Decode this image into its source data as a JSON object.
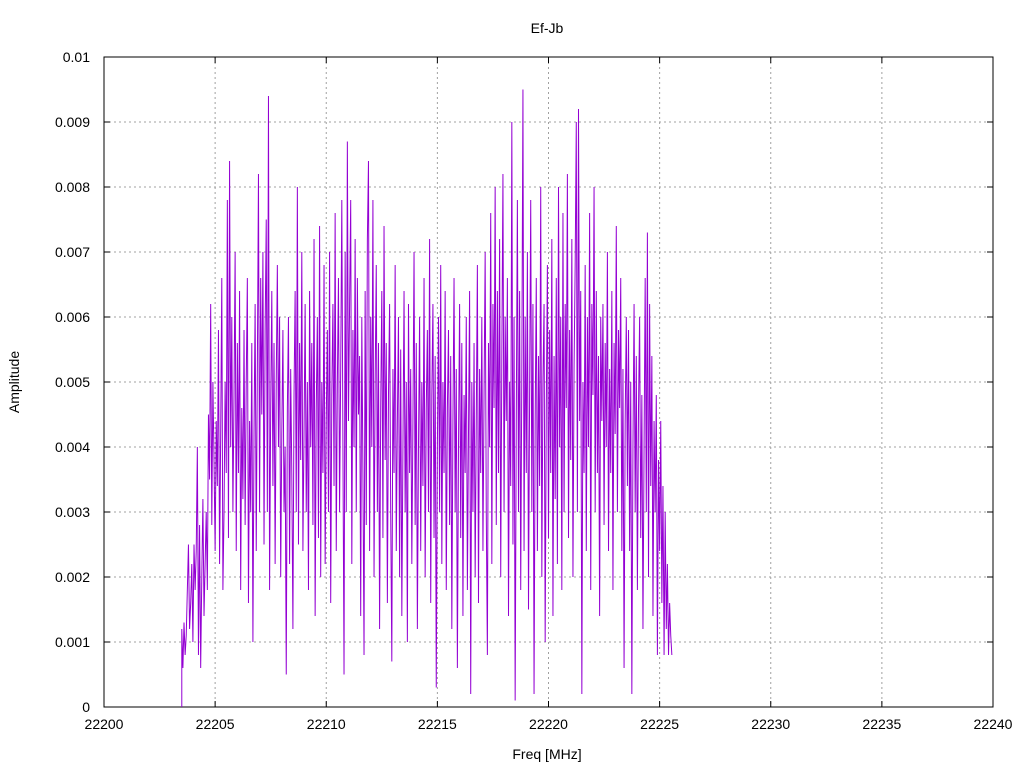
{
  "chart_data": {
    "type": "line",
    "title": "Ef-Jb",
    "xlabel": "Freq [MHz]",
    "ylabel": "Amplitude",
    "xlim": [
      22200,
      22240
    ],
    "ylim": [
      0,
      0.01
    ],
    "x_ticks": [
      "22200",
      "22205",
      "22210",
      "22215",
      "22220",
      "22225",
      "22230",
      "22235",
      "22240"
    ],
    "y_ticks": [
      "0",
      "0.001",
      "0.002",
      "0.003",
      "0.004",
      "0.005",
      "0.006",
      "0.007",
      "0.008",
      "0.009",
      "0.01"
    ],
    "grid": true,
    "legend": "none",
    "series": [
      {
        "color": "#9400d3",
        "x_start": 22203.5,
        "x_step": 0.05,
        "values": [
          0.0012,
          0.0006,
          0.0013,
          0.0008,
          0.0011,
          0.0018,
          0.0025,
          0.0012,
          0.0016,
          0.0022,
          0.001,
          0.0025,
          0.0018,
          0.0024,
          0.004,
          0.0008,
          0.0028,
          0.0006,
          0.002,
          0.0032,
          0.0014,
          0.0022,
          0.003,
          0.0018,
          0.0045,
          0.0035,
          0.0062,
          0.0028,
          0.005,
          0.0038,
          0.0024,
          0.0044,
          0.0034,
          0.0058,
          0.0022,
          0.0042,
          0.0066,
          0.0018,
          0.003,
          0.005,
          0.0036,
          0.0078,
          0.0026,
          0.0084,
          0.004,
          0.006,
          0.003,
          0.0048,
          0.007,
          0.0024,
          0.0056,
          0.0036,
          0.0064,
          0.0018,
          0.0046,
          0.0032,
          0.0058,
          0.0028,
          0.005,
          0.0066,
          0.0016,
          0.0044,
          0.003,
          0.0056,
          0.001,
          0.0042,
          0.0062,
          0.0024,
          0.0052,
          0.0082,
          0.003,
          0.0066,
          0.0045,
          0.007,
          0.0025,
          0.0058,
          0.0075,
          0.003,
          0.0094,
          0.0018,
          0.0046,
          0.0064,
          0.0034,
          0.0056,
          0.0022,
          0.005,
          0.0068,
          0.004,
          0.006,
          0.002,
          0.0042,
          0.0058,
          0.003,
          0.004,
          0.0005,
          0.0046,
          0.006,
          0.0022,
          0.0052,
          0.0036,
          0.0012,
          0.0048,
          0.0064,
          0.003,
          0.008,
          0.0025,
          0.0056,
          0.0038,
          0.007,
          0.0024,
          0.0042,
          0.0062,
          0.003,
          0.005,
          0.0018,
          0.0064,
          0.004,
          0.0056,
          0.0028,
          0.0072,
          0.0014,
          0.0046,
          0.006,
          0.0026,
          0.0074,
          0.002,
          0.005,
          0.0036,
          0.0068,
          0.0022,
          0.0044,
          0.0058,
          0.003,
          0.007,
          0.0016,
          0.0048,
          0.0062,
          0.0034,
          0.0076,
          0.0024,
          0.005,
          0.0066,
          0.003,
          0.0052,
          0.0078,
          0.004,
          0.0005,
          0.007,
          0.003,
          0.0087,
          0.0044,
          0.0062,
          0.0078,
          0.0022,
          0.0058,
          0.004,
          0.0072,
          0.003,
          0.0066,
          0.0045,
          0.0054,
          0.0014,
          0.006,
          0.0036,
          0.0008,
          0.0064,
          0.0028,
          0.0072,
          0.0084,
          0.0024,
          0.006,
          0.004,
          0.0078,
          0.002,
          0.005,
          0.0068,
          0.003,
          0.0056,
          0.0012,
          0.0046,
          0.0064,
          0.0026,
          0.0074,
          0.0038,
          0.0056,
          0.0016,
          0.0048,
          0.0062,
          0.003,
          0.0007,
          0.0052,
          0.0036,
          0.0068,
          0.0024,
          0.0044,
          0.006,
          0.002,
          0.0055,
          0.0014,
          0.004,
          0.0064,
          0.003,
          0.005,
          0.001,
          0.0062,
          0.0036,
          0.0052,
          0.0022,
          0.0044,
          0.007,
          0.0028,
          0.0056,
          0.0012,
          0.004,
          0.006,
          0.0024,
          0.005,
          0.0034,
          0.0066,
          0.002,
          0.0046,
          0.0058,
          0.003,
          0.0072,
          0.0016,
          0.0048,
          0.0062,
          0.0026,
          0.0054,
          0.0003,
          0.004,
          0.006,
          0.003,
          0.0068,
          0.0022,
          0.005,
          0.0036,
          0.0064,
          0.0018,
          0.0046,
          0.0058,
          0.0028,
          0.0054,
          0.0012,
          0.0044,
          0.0066,
          0.003,
          0.0052,
          0.0006,
          0.004,
          0.0062,
          0.0026,
          0.0056,
          0.0014,
          0.0048,
          0.0036,
          0.006,
          0.0018,
          0.0042,
          0.0064,
          0.0002,
          0.005,
          0.003,
          0.0056,
          0.002,
          0.0044,
          0.0068,
          0.0016,
          0.0052,
          0.0036,
          0.006,
          0.0024,
          0.0048,
          0.007,
          0.003,
          0.0008,
          0.0056,
          0.004,
          0.0076,
          0.0022,
          0.0062,
          0.0046,
          0.008,
          0.0028,
          0.0064,
          0.0036,
          0.0072,
          0.002,
          0.0054,
          0.0082,
          0.003,
          0.006,
          0.0044,
          0.0066,
          0.0014,
          0.005,
          0.0034,
          0.009,
          0.0025,
          0.006,
          0.0001,
          0.0044,
          0.0078,
          0.003,
          0.0064,
          0.0018,
          0.0052,
          0.0095,
          0.0024,
          0.006,
          0.0036,
          0.007,
          0.0015,
          0.0048,
          0.0078,
          0.003,
          0.0062,
          0.0002,
          0.0044,
          0.0066,
          0.0024,
          0.0054,
          0.0034,
          0.008,
          0.002,
          0.005,
          0.0062,
          0.001,
          0.0046,
          0.0068,
          0.0026,
          0.0058,
          0.0036,
          0.0072,
          0.0014,
          0.0054,
          0.0032,
          0.0066,
          0.0022,
          0.008,
          0.004,
          0.006,
          0.0018,
          0.0076,
          0.003,
          0.0062,
          0.0046,
          0.0082,
          0.0026,
          0.0058,
          0.0038,
          0.0072,
          0.002,
          0.0052,
          0.0068,
          0.009,
          0.003,
          0.0092,
          0.0044,
          0.0064,
          0.0002,
          0.005,
          0.0036,
          0.0068,
          0.0024,
          0.006,
          0.004,
          0.0076,
          0.0018,
          0.0062,
          0.0048,
          0.008,
          0.003,
          0.0064,
          0.0036,
          0.0054,
          0.0014,
          0.006,
          0.0044,
          0.0062,
          0.0028,
          0.0056,
          0.004,
          0.007,
          0.0024,
          0.0052,
          0.0036,
          0.0064,
          0.0018,
          0.0056,
          0.0042,
          0.0074,
          0.003,
          0.0058,
          0.0046,
          0.0066,
          0.0024,
          0.0052,
          0.0006,
          0.0044,
          0.006,
          0.0034,
          0.0058,
          0.0024,
          0.005,
          0.0002,
          0.004,
          0.0062,
          0.003,
          0.0054,
          0.0018,
          0.0046,
          0.006,
          0.0026,
          0.0048,
          0.0012,
          0.004,
          0.0066,
          0.003,
          0.0073,
          0.002,
          0.0062,
          0.0034,
          0.0054,
          0.0014,
          0.0044,
          0.003,
          0.0048,
          0.0008,
          0.0038,
          0.0024,
          0.0044,
          0.0016,
          0.0034,
          0.0008,
          0.003,
          0.0012,
          0.0022,
          0.0008,
          0.0016,
          0.0011,
          0.0008
        ]
      }
    ]
  }
}
